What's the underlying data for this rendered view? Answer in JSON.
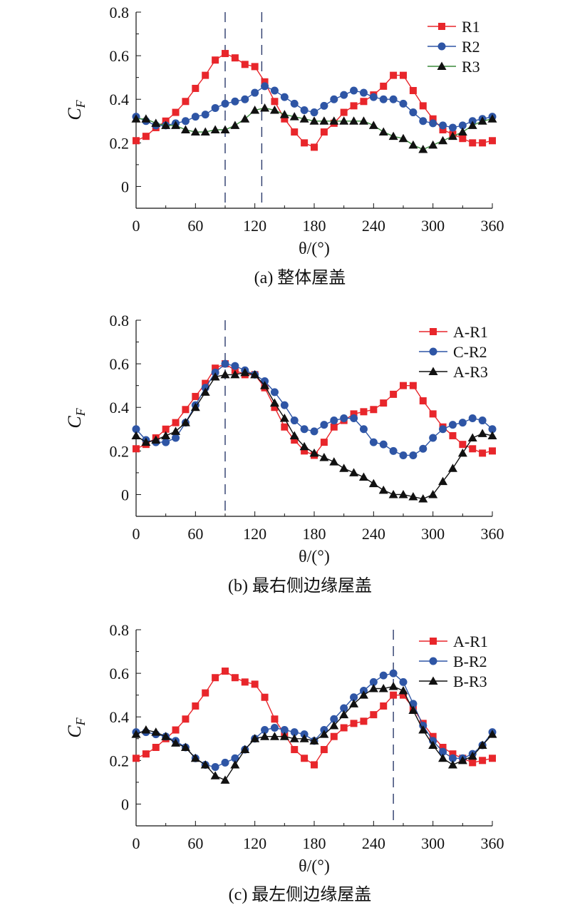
{
  "chart_data": [
    {
      "type": "line",
      "caption": "(a) 整体屋盖",
      "ylabel": "C",
      "ylabel_sub": "F",
      "xlabel": "θ/(°)",
      "xlim": [
        0,
        360
      ],
      "ylim": [
        -0.1,
        0.8
      ],
      "xticks": [
        0,
        60,
        120,
        180,
        240,
        300,
        360
      ],
      "yticks": [
        0,
        0.2,
        0.4,
        0.6,
        0.8
      ],
      "ytick_labels": [
        "0",
        "0.2",
        "0.4",
        "0.6",
        "0.8"
      ],
      "grid": false,
      "legend_position": "top-right",
      "vlines": [
        90,
        127
      ],
      "x": [
        0,
        10,
        20,
        30,
        40,
        50,
        60,
        70,
        80,
        90,
        100,
        110,
        120,
        130,
        140,
        150,
        160,
        170,
        180,
        190,
        200,
        210,
        220,
        230,
        240,
        250,
        260,
        270,
        280,
        290,
        300,
        310,
        320,
        330,
        340,
        350,
        360
      ],
      "series": [
        {
          "name": "R1",
          "color": "#e8262b",
          "marker": "square",
          "values": [
            0.21,
            0.23,
            0.27,
            0.3,
            0.34,
            0.39,
            0.45,
            0.51,
            0.58,
            0.61,
            0.59,
            0.56,
            0.55,
            0.48,
            0.39,
            0.31,
            0.25,
            0.2,
            0.18,
            0.25,
            0.29,
            0.34,
            0.37,
            0.39,
            0.42,
            0.46,
            0.51,
            0.51,
            0.44,
            0.37,
            0.31,
            0.26,
            0.24,
            0.22,
            0.2,
            0.2,
            0.21
          ]
        },
        {
          "name": "R2",
          "color": "#2e55a5",
          "marker": "circle",
          "values": [
            0.32,
            0.3,
            0.28,
            0.28,
            0.29,
            0.3,
            0.32,
            0.33,
            0.36,
            0.38,
            0.39,
            0.4,
            0.43,
            0.46,
            0.44,
            0.41,
            0.38,
            0.35,
            0.34,
            0.37,
            0.4,
            0.42,
            0.44,
            0.43,
            0.41,
            0.4,
            0.4,
            0.38,
            0.34,
            0.3,
            0.29,
            0.28,
            0.27,
            0.28,
            0.3,
            0.31,
            0.32
          ]
        },
        {
          "name": "R3",
          "color": "#111111",
          "line_color": "#3a8a3a",
          "marker": "triangle",
          "values": [
            0.31,
            0.31,
            0.29,
            0.28,
            0.28,
            0.26,
            0.25,
            0.25,
            0.26,
            0.26,
            0.28,
            0.31,
            0.35,
            0.36,
            0.35,
            0.33,
            0.32,
            0.31,
            0.3,
            0.3,
            0.3,
            0.3,
            0.3,
            0.3,
            0.28,
            0.25,
            0.23,
            0.22,
            0.19,
            0.17,
            0.19,
            0.21,
            0.23,
            0.25,
            0.28,
            0.3,
            0.31
          ]
        }
      ]
    },
    {
      "type": "line",
      "caption": "(b) 最右侧边缘屋盖",
      "ylabel": "C",
      "ylabel_sub": "F",
      "xlabel": "θ/(°)",
      "xlim": [
        0,
        360
      ],
      "ylim": [
        -0.1,
        0.8
      ],
      "xticks": [
        0,
        60,
        120,
        180,
        240,
        300,
        360
      ],
      "yticks": [
        0,
        0.2,
        0.4,
        0.6,
        0.8
      ],
      "ytick_labels": [
        "0",
        "0.2",
        "0.4",
        "0.6",
        "0.8"
      ],
      "grid": false,
      "legend_position": "top-right",
      "vlines": [
        90
      ],
      "x": [
        0,
        10,
        20,
        30,
        40,
        50,
        60,
        70,
        80,
        90,
        100,
        110,
        120,
        130,
        140,
        150,
        160,
        170,
        180,
        190,
        200,
        210,
        220,
        230,
        240,
        250,
        260,
        270,
        280,
        290,
        300,
        310,
        320,
        330,
        340,
        350,
        360
      ],
      "series": [
        {
          "name": "A-R1",
          "color": "#e8262b",
          "marker": "square",
          "values": [
            0.21,
            0.23,
            0.26,
            0.3,
            0.33,
            0.39,
            0.45,
            0.51,
            0.58,
            0.6,
            0.57,
            0.55,
            0.55,
            0.49,
            0.4,
            0.31,
            0.25,
            0.2,
            0.18,
            0.24,
            0.31,
            0.34,
            0.37,
            0.38,
            0.39,
            0.42,
            0.46,
            0.5,
            0.5,
            0.43,
            0.37,
            0.31,
            0.27,
            0.23,
            0.21,
            0.19,
            0.2
          ]
        },
        {
          "name": "C-R2",
          "color": "#2e55a5",
          "marker": "circle",
          "values": [
            0.3,
            0.25,
            0.24,
            0.24,
            0.26,
            0.33,
            0.41,
            0.49,
            0.56,
            0.6,
            0.59,
            0.57,
            0.55,
            0.52,
            0.47,
            0.41,
            0.34,
            0.3,
            0.29,
            0.32,
            0.34,
            0.35,
            0.35,
            0.3,
            0.24,
            0.23,
            0.2,
            0.18,
            0.18,
            0.21,
            0.26,
            0.3,
            0.32,
            0.33,
            0.35,
            0.34,
            0.3
          ]
        },
        {
          "name": "A-R3",
          "color": "#111111",
          "marker": "triangle",
          "values": [
            0.27,
            0.24,
            0.25,
            0.27,
            0.29,
            0.33,
            0.4,
            0.47,
            0.54,
            0.55,
            0.55,
            0.56,
            0.55,
            0.5,
            0.42,
            0.35,
            0.27,
            0.22,
            0.19,
            0.17,
            0.15,
            0.12,
            0.1,
            0.08,
            0.05,
            0.02,
            0.0,
            0.0,
            -0.01,
            -0.02,
            0.0,
            0.06,
            0.12,
            0.19,
            0.26,
            0.28,
            0.27
          ]
        }
      ]
    },
    {
      "type": "line",
      "caption": "(c) 最左侧边缘屋盖",
      "ylabel": "C",
      "ylabel_sub": "F",
      "xlabel": "θ/(°)",
      "xlim": [
        0,
        360
      ],
      "ylim": [
        -0.1,
        0.8
      ],
      "xticks": [
        0,
        60,
        120,
        180,
        240,
        300,
        360
      ],
      "yticks": [
        0,
        0.2,
        0.4,
        0.6,
        0.8
      ],
      "ytick_labels": [
        "0",
        "0.2",
        "0.4",
        "0.6",
        "0.8"
      ],
      "grid": false,
      "legend_position": "top-right",
      "vlines": [
        260
      ],
      "x": [
        0,
        10,
        20,
        30,
        40,
        50,
        60,
        70,
        80,
        90,
        100,
        110,
        120,
        130,
        140,
        150,
        160,
        170,
        180,
        190,
        200,
        210,
        220,
        230,
        240,
        250,
        260,
        270,
        280,
        290,
        300,
        310,
        320,
        330,
        340,
        350,
        360
      ],
      "series": [
        {
          "name": "A-R1",
          "color": "#e8262b",
          "marker": "square",
          "values": [
            0.21,
            0.23,
            0.26,
            0.3,
            0.34,
            0.39,
            0.45,
            0.51,
            0.58,
            0.61,
            0.58,
            0.56,
            0.55,
            0.49,
            0.39,
            0.32,
            0.25,
            0.21,
            0.18,
            0.25,
            0.31,
            0.35,
            0.37,
            0.38,
            0.41,
            0.45,
            0.5,
            0.5,
            0.44,
            0.37,
            0.31,
            0.26,
            0.23,
            0.21,
            0.19,
            0.2,
            0.21
          ]
        },
        {
          "name": "B-R2",
          "color": "#2e55a5",
          "marker": "circle",
          "values": [
            0.33,
            0.33,
            0.32,
            0.31,
            0.29,
            0.26,
            0.21,
            0.18,
            0.17,
            0.19,
            0.21,
            0.25,
            0.3,
            0.34,
            0.35,
            0.34,
            0.33,
            0.32,
            0.29,
            0.34,
            0.39,
            0.44,
            0.49,
            0.52,
            0.56,
            0.59,
            0.6,
            0.56,
            0.46,
            0.36,
            0.29,
            0.24,
            0.21,
            0.21,
            0.23,
            0.27,
            0.33
          ]
        },
        {
          "name": "B-R3",
          "color": "#111111",
          "marker": "triangle",
          "values": [
            0.32,
            0.34,
            0.33,
            0.31,
            0.28,
            0.26,
            0.21,
            0.18,
            0.13,
            0.11,
            0.18,
            0.25,
            0.3,
            0.31,
            0.31,
            0.31,
            0.3,
            0.3,
            0.29,
            0.32,
            0.36,
            0.41,
            0.46,
            0.5,
            0.53,
            0.53,
            0.54,
            0.52,
            0.43,
            0.34,
            0.27,
            0.21,
            0.18,
            0.2,
            0.22,
            0.27,
            0.32
          ]
        }
      ]
    }
  ]
}
